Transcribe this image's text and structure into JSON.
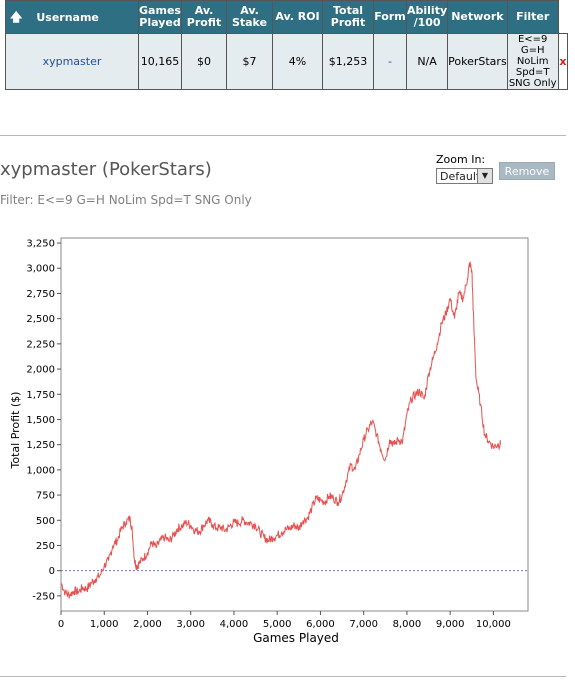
{
  "table": {
    "headers": {
      "username": "Username",
      "games_played": [
        "Games",
        "Played"
      ],
      "av_profit": [
        "Av.",
        "Profit"
      ],
      "av_stake": [
        "Av.",
        "Stake"
      ],
      "av_roi": "Av. ROI",
      "total_profit": [
        "Total",
        "Profit"
      ],
      "form": "Form",
      "ability": [
        "Ability",
        "/100"
      ],
      "network": "Network",
      "filter": "Filter"
    },
    "row": {
      "username": "xypmaster",
      "games_played": "10,165",
      "av_profit": "$0",
      "av_stake": "$7",
      "av_roi": "4%",
      "total_profit": "$1,253",
      "form": "-",
      "ability": "N/A",
      "network": "PokerStars",
      "filter_lines": [
        "E<=9 G=H",
        "NoLim",
        "Spd=T",
        "SNG Only"
      ],
      "remove_x": "x"
    }
  },
  "chart_header": {
    "title": "xypmaster (PokerStars)",
    "filter": "Filter: E<=9 G=H NoLim Spd=T SNG Only",
    "zoom_label": "Zoom In:",
    "zoom_value": "Default",
    "remove_label": "Remove"
  },
  "colors": {
    "header_bg": "#2f6f84",
    "row_bg": "#e4ecef",
    "line": "#e85050",
    "zero_line": "#7070cc",
    "remove_bg": "#a9b9c3"
  },
  "chart_data": {
    "type": "line",
    "xlabel": "Games Played",
    "ylabel": "Total Profit ($)",
    "xlim": [
      0,
      10800
    ],
    "ylim": [
      -400,
      3300
    ],
    "x_ticks": [
      "0",
      "1,000",
      "2,000",
      "3,000",
      "4,000",
      "5,000",
      "6,000",
      "7,000",
      "8,000",
      "9,000",
      "10,000"
    ],
    "x_tick_values": [
      0,
      1000,
      2000,
      3000,
      4000,
      5000,
      6000,
      7000,
      8000,
      9000,
      10000
    ],
    "y_ticks": [
      "-250",
      "0",
      "250",
      "500",
      "750",
      "1,000",
      "1,250",
      "1,500",
      "1,750",
      "2,000",
      "2,250",
      "2,500",
      "2,750",
      "3,000",
      "3,250"
    ],
    "y_tick_values": [
      -250,
      0,
      250,
      500,
      750,
      1000,
      1250,
      1500,
      1750,
      2000,
      2250,
      2500,
      2750,
      3000,
      3250
    ],
    "series": [
      {
        "values": [
          [
            0,
            -120
          ],
          [
            100,
            -220
          ],
          [
            200,
            -240
          ],
          [
            300,
            -200
          ],
          [
            400,
            -210
          ],
          [
            500,
            -170
          ],
          [
            600,
            -180
          ],
          [
            700,
            -120
          ],
          [
            800,
            -80
          ],
          [
            900,
            -50
          ],
          [
            1000,
            50
          ],
          [
            1100,
            100
          ],
          [
            1200,
            250
          ],
          [
            1300,
            300
          ],
          [
            1400,
            420
          ],
          [
            1500,
            480
          ],
          [
            1600,
            520
          ],
          [
            1650,
            380
          ],
          [
            1700,
            100
          ],
          [
            1750,
            40
          ],
          [
            1800,
            70
          ],
          [
            1900,
            120
          ],
          [
            2000,
            180
          ],
          [
            2100,
            280
          ],
          [
            2200,
            230
          ],
          [
            2300,
            300
          ],
          [
            2400,
            330
          ],
          [
            2500,
            290
          ],
          [
            2600,
            350
          ],
          [
            2700,
            420
          ],
          [
            2800,
            440
          ],
          [
            2900,
            480
          ],
          [
            3000,
            450
          ],
          [
            3100,
            400
          ],
          [
            3200,
            390
          ],
          [
            3300,
            450
          ],
          [
            3400,
            500
          ],
          [
            3500,
            460
          ],
          [
            3600,
            420
          ],
          [
            3700,
            430
          ],
          [
            3800,
            400
          ],
          [
            3900,
            440
          ],
          [
            4000,
            480
          ],
          [
            4100,
            470
          ],
          [
            4200,
            500
          ],
          [
            4300,
            480
          ],
          [
            4400,
            470
          ],
          [
            4500,
            450
          ],
          [
            4600,
            380
          ],
          [
            4700,
            330
          ],
          [
            4800,
            300
          ],
          [
            4900,
            330
          ],
          [
            5000,
            350
          ],
          [
            5100,
            380
          ],
          [
            5200,
            410
          ],
          [
            5300,
            420
          ],
          [
            5400,
            450
          ],
          [
            5500,
            420
          ],
          [
            5600,
            500
          ],
          [
            5700,
            520
          ],
          [
            5800,
            620
          ],
          [
            5900,
            720
          ],
          [
            6000,
            700
          ],
          [
            6100,
            680
          ],
          [
            6200,
            740
          ],
          [
            6300,
            720
          ],
          [
            6400,
            680
          ],
          [
            6500,
            750
          ],
          [
            6600,
            900
          ],
          [
            6700,
            1050
          ],
          [
            6800,
            1000
          ],
          [
            6900,
            1150
          ],
          [
            7000,
            1300
          ],
          [
            7100,
            1400
          ],
          [
            7200,
            1480
          ],
          [
            7300,
            1350
          ],
          [
            7400,
            1200
          ],
          [
            7500,
            1100
          ],
          [
            7600,
            1300
          ],
          [
            7700,
            1250
          ],
          [
            7800,
            1300
          ],
          [
            7900,
            1280
          ],
          [
            8000,
            1550
          ],
          [
            8100,
            1700
          ],
          [
            8200,
            1750
          ],
          [
            8300,
            1780
          ],
          [
            8400,
            1700
          ],
          [
            8500,
            1950
          ],
          [
            8600,
            2100
          ],
          [
            8700,
            2250
          ],
          [
            8800,
            2450
          ],
          [
            8900,
            2550
          ],
          [
            9000,
            2700
          ],
          [
            9100,
            2500
          ],
          [
            9200,
            2750
          ],
          [
            9300,
            2700
          ],
          [
            9400,
            2900
          ],
          [
            9450,
            3050
          ],
          [
            9500,
            2980
          ],
          [
            9550,
            2400
          ],
          [
            9600,
            1900
          ],
          [
            9700,
            1650
          ],
          [
            9800,
            1350
          ],
          [
            9900,
            1280
          ],
          [
            10000,
            1230
          ],
          [
            10100,
            1250
          ],
          [
            10165,
            1253
          ]
        ]
      }
    ]
  }
}
